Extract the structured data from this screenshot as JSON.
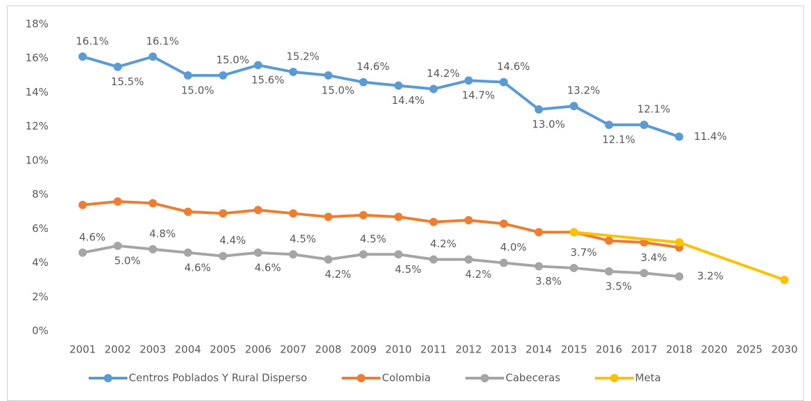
{
  "chart_data": {
    "type": "line",
    "categories": [
      "2001",
      "2002",
      "2003",
      "2004",
      "2005",
      "2006",
      "2007",
      "2008",
      "2009",
      "2010",
      "2011",
      "2012",
      "2013",
      "2014",
      "2015",
      "2016",
      "2017",
      "2018",
      "2020",
      "2025",
      "2030"
    ],
    "series": [
      {
        "name": "Centros Poblados Y Rural Disperso",
        "color": "#5b9bd5",
        "values": [
          16.1,
          15.5,
          16.1,
          15.0,
          15.0,
          15.6,
          15.2,
          15.0,
          14.6,
          14.4,
          14.2,
          14.7,
          14.6,
          13.0,
          13.2,
          12.1,
          12.1,
          11.4,
          null,
          null,
          null
        ],
        "value_labels": [
          "16.1%",
          "15.5%",
          "16.1%",
          "15.0%",
          "15.0%",
          "15.6%",
          "15.2%",
          "15.0%",
          "14.6%",
          "14.4%",
          "14.2%",
          "14.7%",
          "14.6%",
          "13.0%",
          "13.2%",
          "12.1%",
          "12.1%",
          "11.4%",
          null,
          null,
          null
        ]
      },
      {
        "name": "Colombia",
        "color": "#ed7d31",
        "values": [
          7.4,
          7.6,
          7.5,
          7.0,
          6.9,
          7.1,
          6.9,
          6.7,
          6.8,
          6.7,
          6.4,
          6.5,
          6.3,
          5.8,
          5.8,
          5.3,
          5.2,
          4.9,
          null,
          null,
          null
        ]
      },
      {
        "name": "Cabeceras",
        "color": "#a5a5a5",
        "values": [
          4.6,
          5.0,
          4.8,
          4.6,
          4.4,
          4.6,
          4.5,
          4.2,
          4.5,
          4.5,
          4.2,
          4.2,
          4.0,
          3.8,
          3.7,
          3.5,
          3.4,
          3.2,
          null,
          null,
          null
        ],
        "value_labels": [
          "4.6%",
          "5.0%",
          "4.8%",
          "4.6%",
          "4.4%",
          "4.6%",
          "4.5%",
          "4.2%",
          "4.5%",
          "4.5%",
          "4.2%",
          "4.2%",
          "4.0%",
          "3.8%",
          "3.7%",
          "3.5%",
          "3.4%",
          "3.2%",
          null,
          null,
          null
        ]
      },
      {
        "name": "Meta",
        "color": "#ffc000",
        "values": [
          null,
          null,
          null,
          null,
          null,
          null,
          null,
          null,
          null,
          null,
          null,
          null,
          null,
          null,
          5.8,
          null,
          null,
          5.2,
          null,
          null,
          3.0
        ]
      }
    ],
    "ylim": [
      0,
      18
    ],
    "yticks": [
      {
        "value": 0,
        "label": "0%"
      },
      {
        "value": 2,
        "label": "2%"
      },
      {
        "value": 4,
        "label": "4%"
      },
      {
        "value": 6,
        "label": "6%"
      },
      {
        "value": 8,
        "label": "8%"
      },
      {
        "value": 10,
        "label": "10%"
      },
      {
        "value": 12,
        "label": "12%"
      },
      {
        "value": 14,
        "label": "14%"
      },
      {
        "value": 16,
        "label": "16%"
      },
      {
        "value": 18,
        "label": "18%"
      }
    ],
    "span_gaps": true,
    "legend": "bottom"
  }
}
